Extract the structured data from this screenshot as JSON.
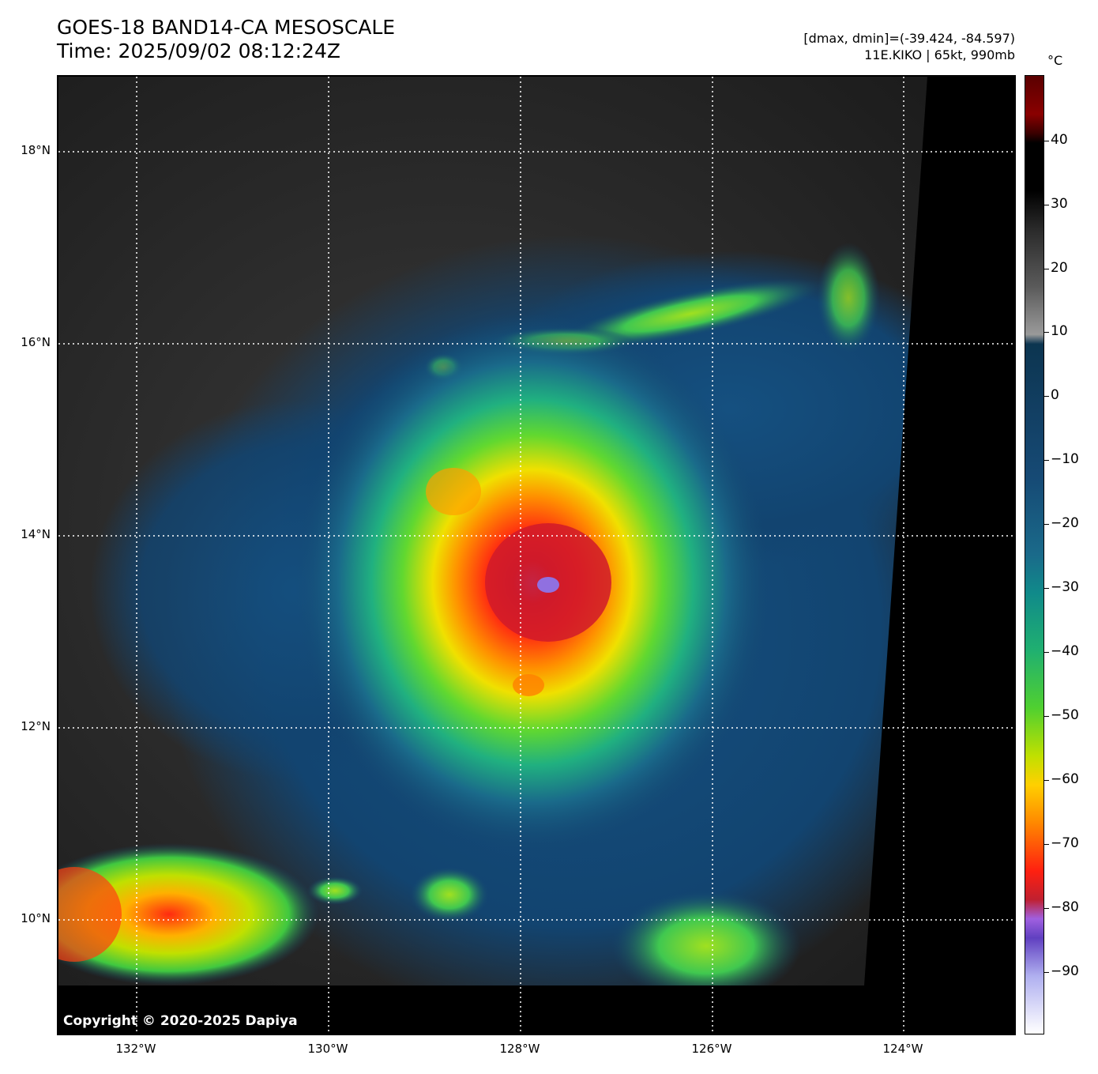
{
  "title": {
    "line1": "GOES-18 BAND14-CA MESOSCALE",
    "line2": "Time: 2025/09/02 08:12:24Z"
  },
  "info": {
    "range": "[dmax, dmin]=(-39.424, -84.597)",
    "storm": "11E.KIKO | 65kt, 990mb"
  },
  "map": {
    "lat_labels": [
      "18°N",
      "16°N",
      "14°N",
      "12°N",
      "10°N"
    ],
    "lon_labels": [
      "132°W",
      "130°W",
      "128°W",
      "126°W",
      "124°W"
    ],
    "gridlines": true,
    "copyright": "Copyright © 2020-2025 Dapiya"
  },
  "colorbar": {
    "unit": "°C",
    "ticks": [
      "40",
      "30",
      "20",
      "10",
      "0",
      "−10",
      "−20",
      "−30",
      "−40",
      "−50",
      "−60",
      "−70",
      "−80",
      "−90"
    ]
  },
  "colors": {
    "cold_core": "#c01030",
    "eye_min": "#9070e0",
    "ocean_dark": "#1a1a1a",
    "cloud_blue": "#154a72"
  }
}
